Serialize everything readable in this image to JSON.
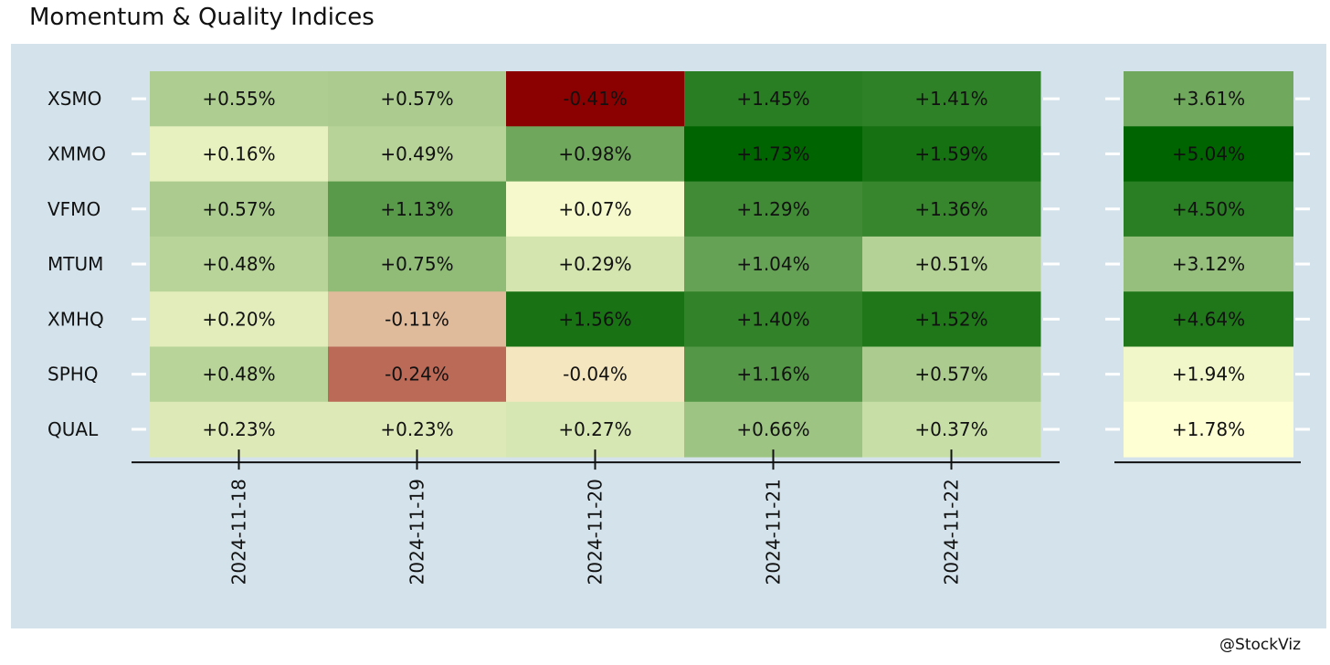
{
  "title": "Momentum & Quality Indices",
  "credit": "@StockViz",
  "colors": {
    "panel_bg": "#d4e3eb",
    "axis": "#111111",
    "tick_mark": "#ffffff",
    "text": "#111111"
  },
  "chart_data": {
    "type": "heatmap",
    "rows": [
      "XSMO",
      "XMMO",
      "VFMO",
      "MTUM",
      "XMHQ",
      "SPHQ",
      "QUAL"
    ],
    "columns": [
      "2024-11-18",
      "2024-11-19",
      "2024-11-20",
      "2024-11-21",
      "2024-11-22"
    ],
    "values": [
      [
        0.55,
        0.57,
        -0.41,
        1.45,
        1.41
      ],
      [
        0.16,
        0.49,
        0.98,
        1.73,
        1.59
      ],
      [
        0.57,
        1.13,
        0.07,
        1.29,
        1.36
      ],
      [
        0.48,
        0.75,
        0.29,
        1.04,
        0.51
      ],
      [
        0.2,
        -0.11,
        1.56,
        1.4,
        1.52
      ],
      [
        0.48,
        -0.24,
        -0.04,
        1.16,
        0.57
      ],
      [
        0.23,
        0.23,
        0.27,
        0.66,
        0.37
      ]
    ],
    "labels": [
      [
        "+0.55%",
        "+0.57%",
        "-0.41%",
        "+1.45%",
        "+1.41%"
      ],
      [
        "+0.16%",
        "+0.49%",
        "+0.98%",
        "+1.73%",
        "+1.59%"
      ],
      [
        "+0.57%",
        "+1.13%",
        "+0.07%",
        "+1.29%",
        "+1.36%"
      ],
      [
        "+0.48%",
        "+0.75%",
        "+0.29%",
        "+1.04%",
        "+0.51%"
      ],
      [
        "+0.20%",
        "-0.11%",
        "+1.56%",
        "+1.40%",
        "+1.52%"
      ],
      [
        "+0.48%",
        "-0.24%",
        "-0.04%",
        "+1.16%",
        "+0.57%"
      ],
      [
        "+0.23%",
        "+0.23%",
        "+0.27%",
        "+0.66%",
        "+0.37%"
      ]
    ],
    "totals": [
      3.61,
      5.04,
      4.5,
      3.12,
      4.64,
      1.94,
      1.78
    ],
    "total_labels": [
      "+3.61%",
      "+5.04%",
      "+4.50%",
      "+3.12%",
      "+4.64%",
      "+1.94%",
      "+1.78%"
    ],
    "color_scale": {
      "low": "#8b0000",
      "mid": "#ffffd4",
      "high": "#006400"
    },
    "grid": false
  }
}
